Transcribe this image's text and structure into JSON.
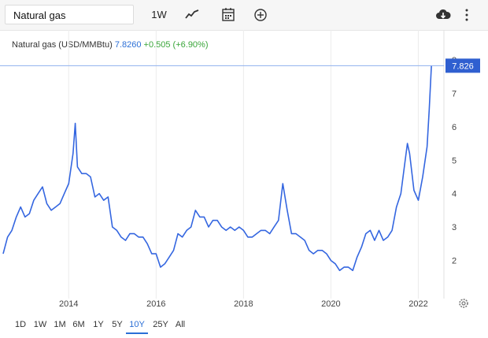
{
  "toolbar": {
    "search_value": "Natural gas",
    "interval_label": "1W",
    "icons": [
      "line-chart-icon",
      "calendar-icon",
      "add-icon",
      "download-icon",
      "more-vert-icon"
    ]
  },
  "quote": {
    "name": "Natural gas (USD/MMBtu)",
    "price": "7.8260",
    "change": "+0.505 (+6.90%)"
  },
  "price_badge": "7.826",
  "ranges": [
    {
      "label": "1D",
      "active": false
    },
    {
      "label": "1W",
      "active": false
    },
    {
      "label": "1M",
      "active": false
    },
    {
      "label": "6M",
      "active": false
    },
    {
      "label": "1Y",
      "active": false
    },
    {
      "label": "5Y",
      "active": false
    },
    {
      "label": "10Y",
      "active": true
    },
    {
      "label": "25Y",
      "active": false
    },
    {
      "label": "All",
      "active": false
    }
  ],
  "colors": {
    "line": "#3466e0",
    "price": "#2b6fd6",
    "change": "#3aa63a",
    "badge": "#2f5fd0"
  },
  "chart_data": {
    "type": "line",
    "series": [
      {
        "values": [
          [
            2012.5,
            2.2
          ],
          [
            2012.6,
            2.7
          ],
          [
            2012.7,
            2.9
          ],
          [
            2012.8,
            3.3
          ],
          [
            2012.9,
            3.6
          ],
          [
            2013.0,
            3.3
          ],
          [
            2013.1,
            3.4
          ],
          [
            2013.2,
            3.8
          ],
          [
            2013.3,
            4.0
          ],
          [
            2013.4,
            4.2
          ],
          [
            2013.5,
            3.7
          ],
          [
            2013.6,
            3.5
          ],
          [
            2013.7,
            3.6
          ],
          [
            2013.8,
            3.7
          ],
          [
            2013.9,
            4.0
          ],
          [
            2014.0,
            4.3
          ],
          [
            2014.1,
            5.2
          ],
          [
            2014.15,
            6.1
          ],
          [
            2014.2,
            4.8
          ],
          [
            2014.3,
            4.6
          ],
          [
            2014.4,
            4.6
          ],
          [
            2014.5,
            4.5
          ],
          [
            2014.6,
            3.9
          ],
          [
            2014.7,
            4.0
          ],
          [
            2014.8,
            3.8
          ],
          [
            2014.9,
            3.9
          ],
          [
            2015.0,
            3.0
          ],
          [
            2015.1,
            2.9
          ],
          [
            2015.2,
            2.7
          ],
          [
            2015.3,
            2.6
          ],
          [
            2015.4,
            2.8
          ],
          [
            2015.5,
            2.8
          ],
          [
            2015.6,
            2.7
          ],
          [
            2015.7,
            2.7
          ],
          [
            2015.8,
            2.5
          ],
          [
            2015.9,
            2.2
          ],
          [
            2016.0,
            2.2
          ],
          [
            2016.1,
            1.8
          ],
          [
            2016.2,
            1.9
          ],
          [
            2016.3,
            2.1
          ],
          [
            2016.4,
            2.3
          ],
          [
            2016.5,
            2.8
          ],
          [
            2016.6,
            2.7
          ],
          [
            2016.7,
            2.9
          ],
          [
            2016.8,
            3.0
          ],
          [
            2016.9,
            3.5
          ],
          [
            2017.0,
            3.3
          ],
          [
            2017.1,
            3.3
          ],
          [
            2017.2,
            3.0
          ],
          [
            2017.3,
            3.2
          ],
          [
            2017.4,
            3.2
          ],
          [
            2017.5,
            3.0
          ],
          [
            2017.6,
            2.9
          ],
          [
            2017.7,
            3.0
          ],
          [
            2017.8,
            2.9
          ],
          [
            2017.9,
            3.0
          ],
          [
            2018.0,
            2.9
          ],
          [
            2018.1,
            2.7
          ],
          [
            2018.2,
            2.7
          ],
          [
            2018.3,
            2.8
          ],
          [
            2018.4,
            2.9
          ],
          [
            2018.5,
            2.9
          ],
          [
            2018.6,
            2.8
          ],
          [
            2018.7,
            3.0
          ],
          [
            2018.8,
            3.2
          ],
          [
            2018.9,
            4.3
          ],
          [
            2019.0,
            3.5
          ],
          [
            2019.1,
            2.8
          ],
          [
            2019.2,
            2.8
          ],
          [
            2019.3,
            2.7
          ],
          [
            2019.4,
            2.6
          ],
          [
            2019.5,
            2.3
          ],
          [
            2019.6,
            2.2
          ],
          [
            2019.7,
            2.3
          ],
          [
            2019.8,
            2.3
          ],
          [
            2019.9,
            2.2
          ],
          [
            2020.0,
            2.0
          ],
          [
            2020.1,
            1.9
          ],
          [
            2020.2,
            1.7
          ],
          [
            2020.3,
            1.8
          ],
          [
            2020.4,
            1.8
          ],
          [
            2020.5,
            1.7
          ],
          [
            2020.6,
            2.1
          ],
          [
            2020.7,
            2.4
          ],
          [
            2020.8,
            2.8
          ],
          [
            2020.9,
            2.9
          ],
          [
            2021.0,
            2.6
          ],
          [
            2021.1,
            2.9
          ],
          [
            2021.2,
            2.6
          ],
          [
            2021.3,
            2.7
          ],
          [
            2021.4,
            2.9
          ],
          [
            2021.5,
            3.6
          ],
          [
            2021.6,
            4.0
          ],
          [
            2021.7,
            5.0
          ],
          [
            2021.75,
            5.5
          ],
          [
            2021.8,
            5.2
          ],
          [
            2021.9,
            4.1
          ],
          [
            2022.0,
            3.8
          ],
          [
            2022.1,
            4.5
          ],
          [
            2022.2,
            5.4
          ],
          [
            2022.25,
            6.5
          ],
          [
            2022.3,
            7.826
          ]
        ]
      }
    ],
    "xlim": [
      2012.5,
      2022.55
    ],
    "ylim": [
      1.0,
      8.0
    ],
    "x_ticks": [
      "2014",
      "2016",
      "2018",
      "2020",
      "2022"
    ],
    "y_ticks": [
      "2",
      "3",
      "4",
      "5",
      "6",
      "7",
      "8"
    ],
    "grid": "vertical"
  }
}
